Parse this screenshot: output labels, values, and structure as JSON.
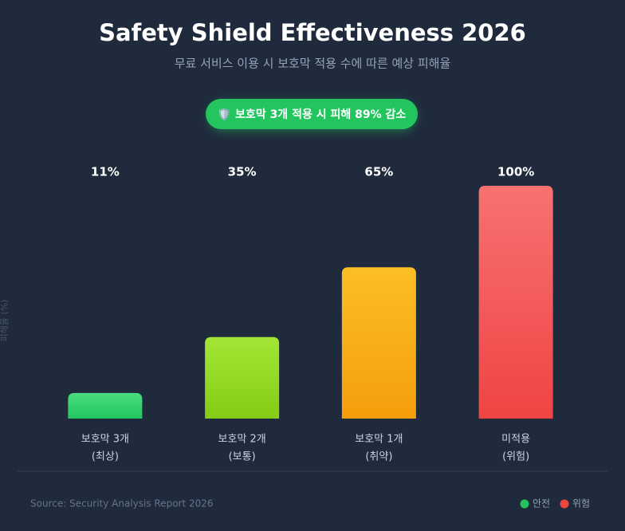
{
  "chart_data": {
    "type": "bar",
    "title": "Safety Shield Effectiveness 2026",
    "subtitle": "무료 서비스 이용 시 보호막 적용 수에 따른 예상 피해율",
    "badge": "🛡️ 보호막 3개 적용 시 피해 89% 감소",
    "y_label": "피해율 (%)",
    "categories": [
      "보호막 3개",
      "보호막 2개",
      "보호막 1개",
      "미적용"
    ],
    "category_notes": [
      "(최상)",
      "(보통)",
      "(취약)",
      "(위험)"
    ],
    "values": [
      11,
      35,
      65,
      100
    ],
    "value_labels": [
      "11%",
      "35%",
      "65%",
      "100%"
    ],
    "gradients": [
      [
        "#4ade80",
        "#22c55e"
      ],
      [
        "#a3e635",
        "#84cc16"
      ],
      [
        "#fbbf24",
        "#f59e0b"
      ],
      [
        "#f87171",
        "#ef4444"
      ]
    ],
    "ylim": [
      0,
      100
    ],
    "source": "Source: Security Analysis Report 2026",
    "legend": [
      {
        "name": "안전",
        "color": "#22c55e"
      },
      {
        "name": "위험",
        "color": "#ef4444"
      }
    ]
  }
}
